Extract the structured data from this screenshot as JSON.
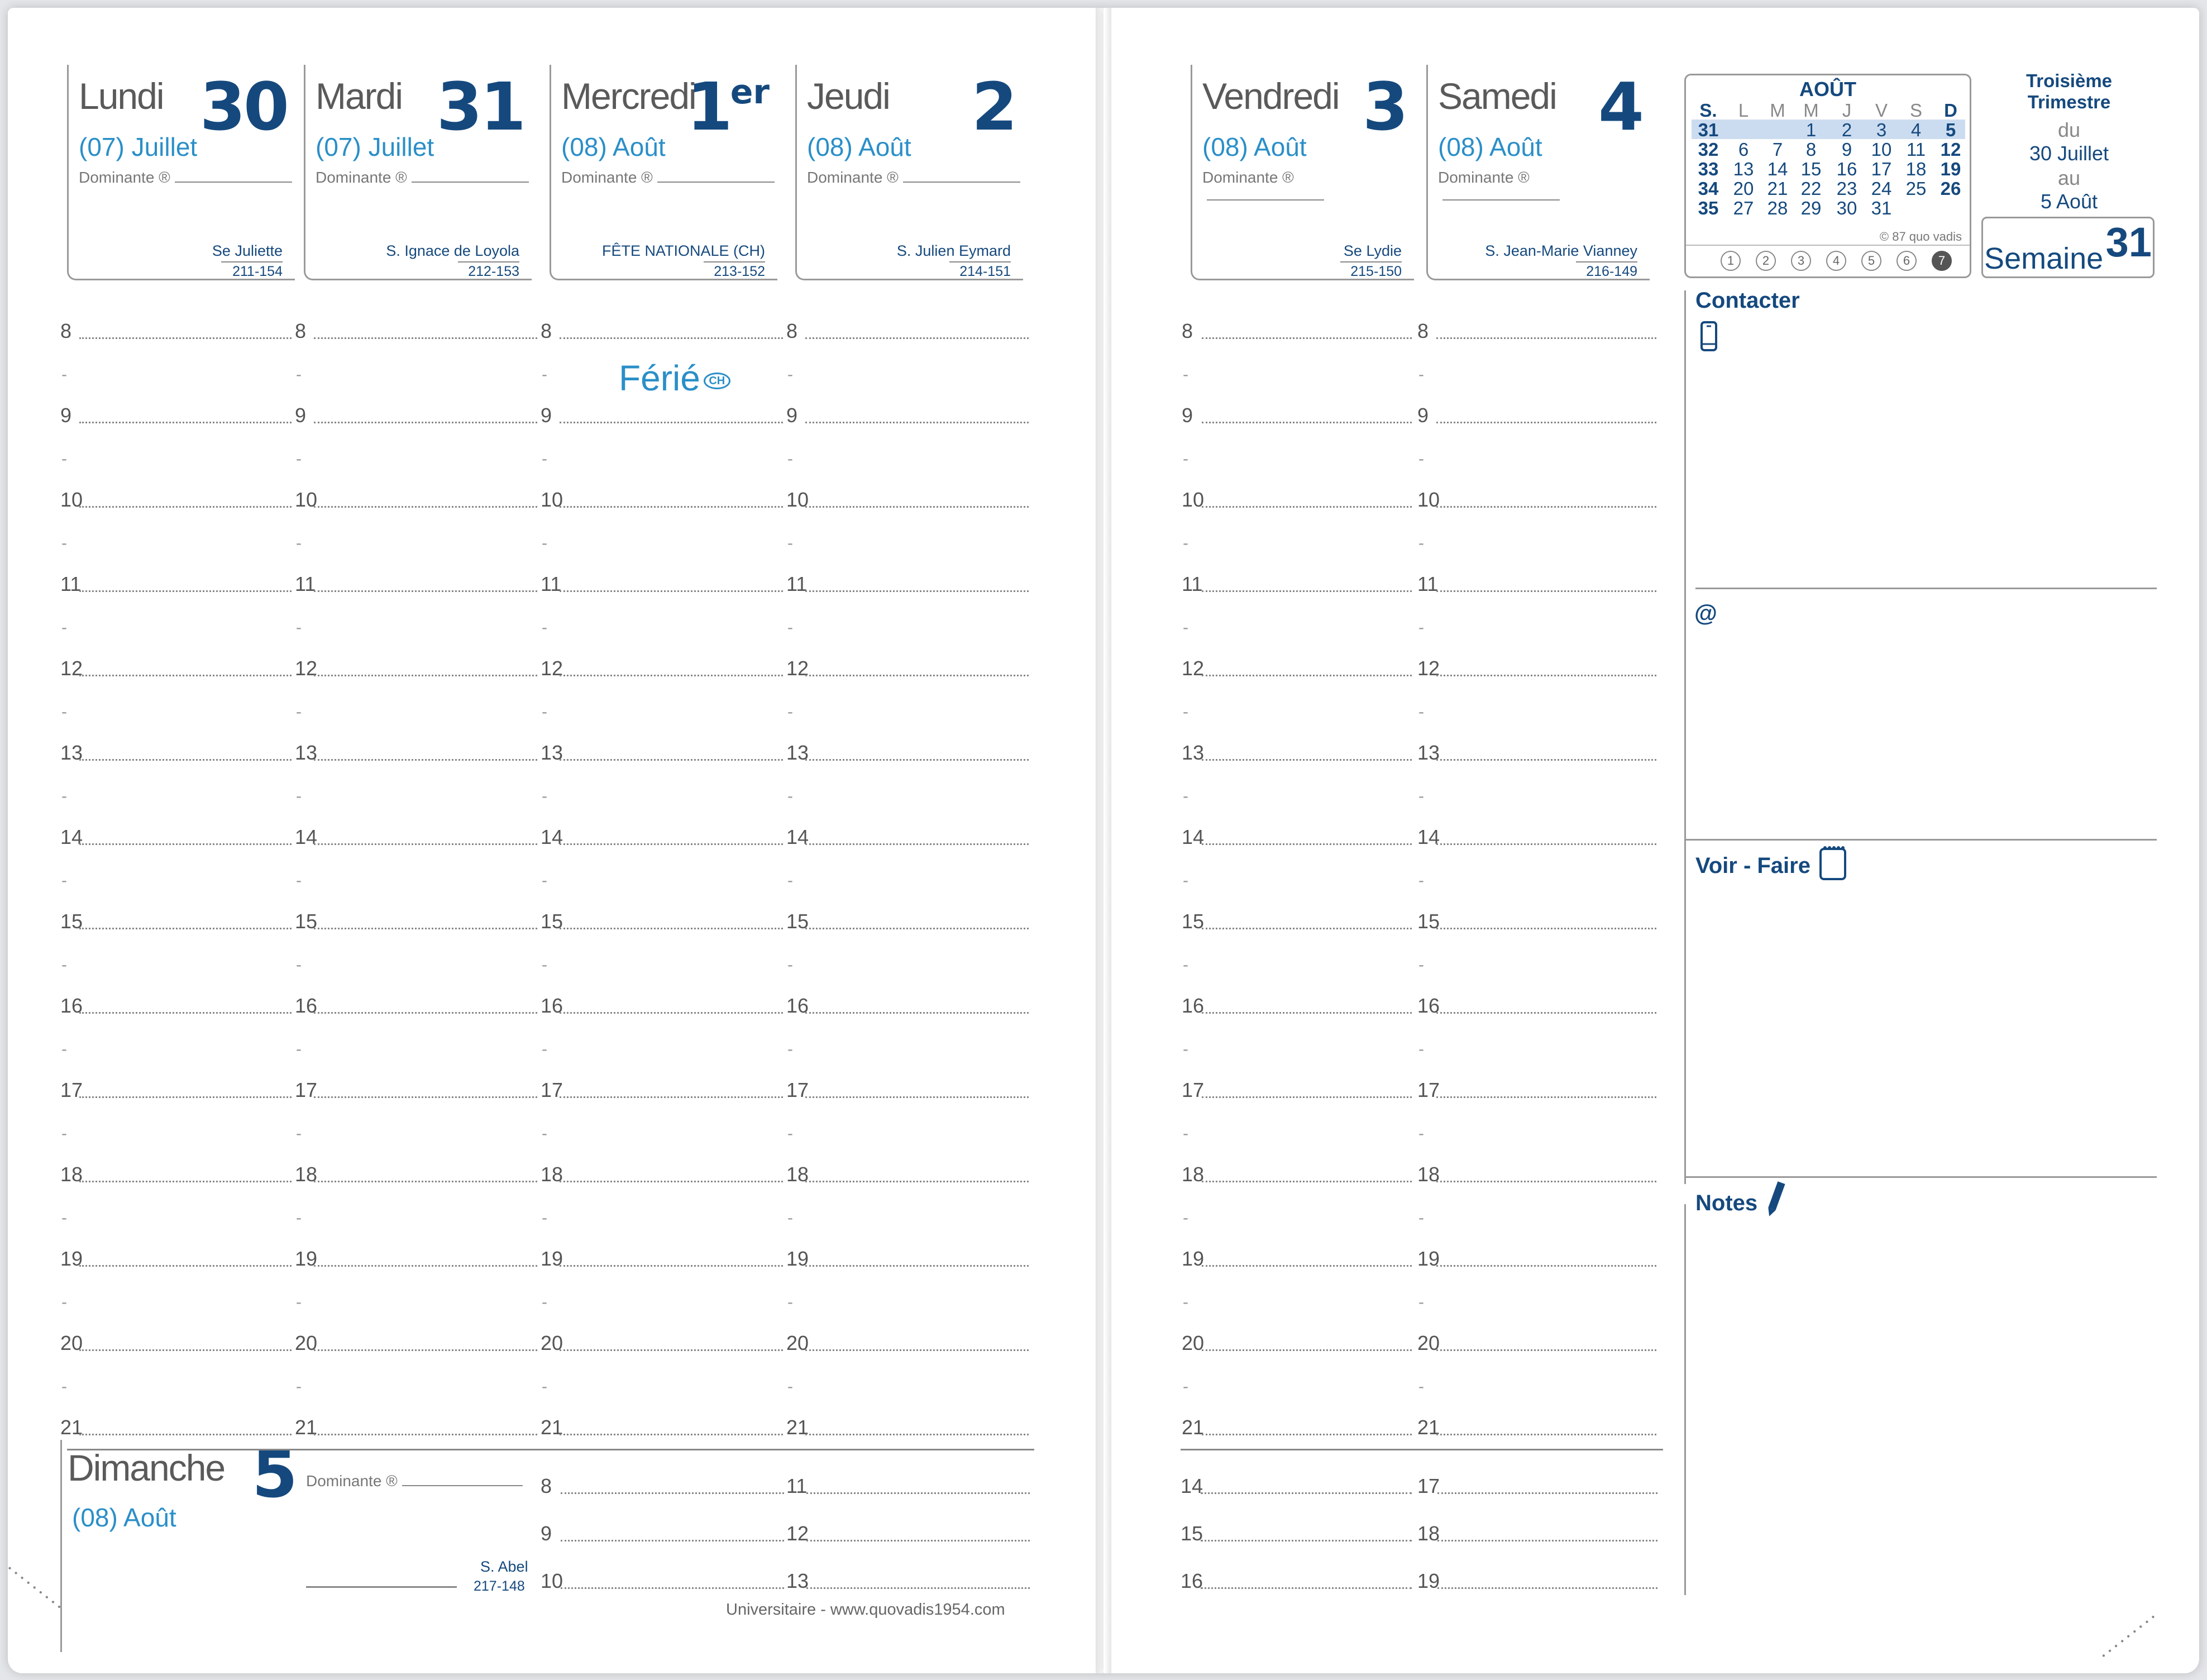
{
  "days_left": [
    {
      "name": "Lundi",
      "num": "30",
      "sup": "",
      "month": "(07) Juillet",
      "saint": "Se Juliette",
      "code": "211-154"
    },
    {
      "name": "Mardi",
      "num": "31",
      "sup": "",
      "month": "(07) Juillet",
      "saint": "S. Ignace de Loyola",
      "code": "212-153"
    },
    {
      "name": "Mercredi",
      "num": "1",
      "sup": "er",
      "month": "(08) Août",
      "saint": "FÊTE NATIONALE (CH)",
      "code": "213-152"
    },
    {
      "name": "Jeudi",
      "num": "2",
      "sup": "",
      "month": "(08) Août",
      "saint": "S. Julien Eymard",
      "code": "214-151"
    }
  ],
  "days_right": [
    {
      "name": "Vendredi",
      "num": "3",
      "sup": "",
      "month": "(08) Août",
      "saint": "Se Lydie",
      "code": "215-150"
    },
    {
      "name": "Samedi",
      "num": "4",
      "sup": "",
      "month": "(08) Août",
      "saint": "S. Jean-Marie Vianney",
      "code": "216-149"
    }
  ],
  "dominante_label": "Dominante ®",
  "hours": [
    "8",
    "9",
    "10",
    "11",
    "12",
    "13",
    "14",
    "15",
    "16",
    "17",
    "18",
    "19",
    "20",
    "21"
  ],
  "half_mark": "-",
  "holiday": {
    "label": "Férié",
    "badge": "CH"
  },
  "sunday": {
    "name": "Dimanche",
    "num": "5",
    "month": "(08) Août",
    "saint": "S. Abel",
    "code": "217-148",
    "hours_a": [
      "8",
      "9",
      "10"
    ],
    "hours_b": [
      "11",
      "12",
      "13"
    ]
  },
  "weekend_extra": {
    "hours_a": [
      "14",
      "15",
      "16"
    ],
    "hours_b": [
      "17",
      "18",
      "19"
    ]
  },
  "footer": "Universitaire - www.quovadis1954.com",
  "mini_calendar": {
    "title": "AOÛT",
    "headers": [
      "S.",
      "L",
      "M",
      "M",
      "J",
      "V",
      "S",
      "D"
    ],
    "rows": [
      [
        "31",
        "",
        "",
        "1",
        "2",
        "3",
        "4",
        "5"
      ],
      [
        "32",
        "6",
        "7",
        "8",
        "9",
        "10",
        "11",
        "12"
      ],
      [
        "33",
        "13",
        "14",
        "15",
        "16",
        "17",
        "18",
        "19"
      ],
      [
        "34",
        "20",
        "21",
        "22",
        "23",
        "24",
        "25",
        "26"
      ],
      [
        "35",
        "27",
        "28",
        "29",
        "30",
        "31",
        "",
        ""
      ]
    ],
    "highlight_row": 0,
    "copyright": "© 87 quo vadis",
    "weekday_circles": [
      "1",
      "2",
      "3",
      "4",
      "5",
      "6",
      "7"
    ],
    "active_circle": 6
  },
  "trimester": {
    "title": "Troisième Trimestre",
    "du": "du",
    "from": "30 Juillet",
    "au": "au",
    "to": "5 Août"
  },
  "week": {
    "label": "Semaine",
    "number": "31"
  },
  "sections": {
    "contact": "Contacter",
    "email": "@",
    "todo": "Voir - Faire",
    "notes": "Notes"
  },
  "colors": {
    "primary": "#15497e",
    "accent": "#2a8fc8",
    "highlight": "#ccdcf0"
  }
}
